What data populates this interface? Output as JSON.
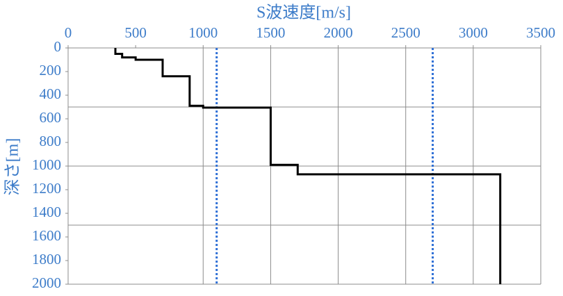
{
  "chart_data": {
    "type": "line",
    "x_title": "S波速度[m/s]",
    "y_title": "深さ[m]",
    "xlim": [
      0,
      3500
    ],
    "xticks": [
      0,
      500,
      1000,
      1500,
      2000,
      2500,
      3000,
      3500
    ],
    "ylim": [
      0,
      2000
    ],
    "yticks": [
      0,
      200,
      400,
      600,
      800,
      1000,
      1200,
      1400,
      1600,
      1800,
      2000
    ],
    "y_inverted": true,
    "x_axis_position": "top",
    "xgrid": [
      1000,
      1500,
      2000,
      2500,
      3000,
      3500
    ],
    "ygrid": [
      500,
      1000,
      1500,
      2000
    ],
    "series": [
      {
        "color": "#000000",
        "x": [
          350,
          350,
          400,
          400,
          500,
          500,
          700,
          700,
          900,
          900,
          1000,
          1000,
          1500,
          1500,
          1700,
          1700,
          3200,
          3200
        ],
        "values": [
          0,
          50,
          50,
          80,
          80,
          100,
          100,
          240,
          240,
          490,
          490,
          505,
          505,
          990,
          990,
          1070,
          1070,
          2000
        ]
      }
    ],
    "vlines": [
      {
        "value": 1100,
        "color": "#2e6fd6"
      },
      {
        "value": 2700,
        "color": "#2e6fd6"
      }
    ]
  }
}
